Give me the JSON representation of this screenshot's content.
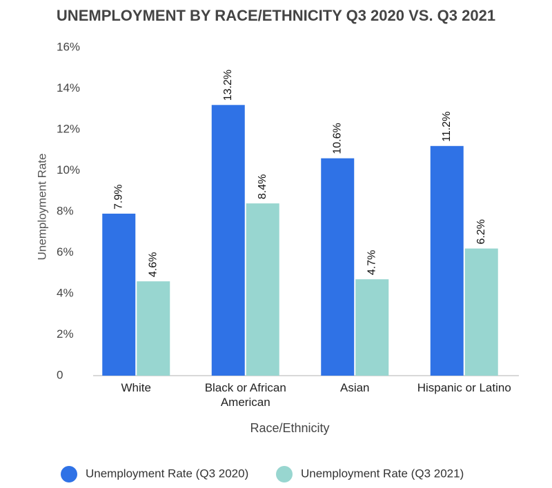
{
  "chart_data": {
    "type": "bar",
    "title": "UNEMPLOYMENT BY RACE/ETHNICITY Q3 2020 VS. Q3 2021",
    "x_label": "Race/Ethnicity",
    "y_label": "Unemployment Rate",
    "categories": [
      "White",
      "Black or African American",
      "Asian",
      "Hispanic or Latino"
    ],
    "series": [
      {
        "name": "Unemployment Rate (Q3 2020)",
        "color": "#2f72e6",
        "values": [
          7.9,
          13.2,
          10.6,
          11.2
        ],
        "value_labels": [
          "7.9%",
          "13.2%",
          "10.6%",
          "11.2%"
        ]
      },
      {
        "name": "Unemployment Rate (Q3 2021)",
        "color": "#98d6d0",
        "values": [
          4.6,
          8.4,
          4.7,
          6.2
        ],
        "value_labels": [
          "4.6%",
          "8.4%",
          "4.7%",
          "6.2%"
        ]
      }
    ],
    "ylim": [
      0,
      16
    ],
    "yticks": [
      0,
      {
        "value": 2,
        "label": "2%"
      },
      {
        "value": 4,
        "label": "4%"
      },
      {
        "value": 6,
        "label": "6%"
      },
      {
        "value": 8,
        "label": "8%"
      },
      {
        "value": 10,
        "label": "10%"
      },
      {
        "value": 12,
        "label": "12%"
      },
      {
        "value": 14,
        "label": "14%"
      },
      {
        "value": 16,
        "label": "16%"
      }
    ],
    "legend": "bottom"
  }
}
